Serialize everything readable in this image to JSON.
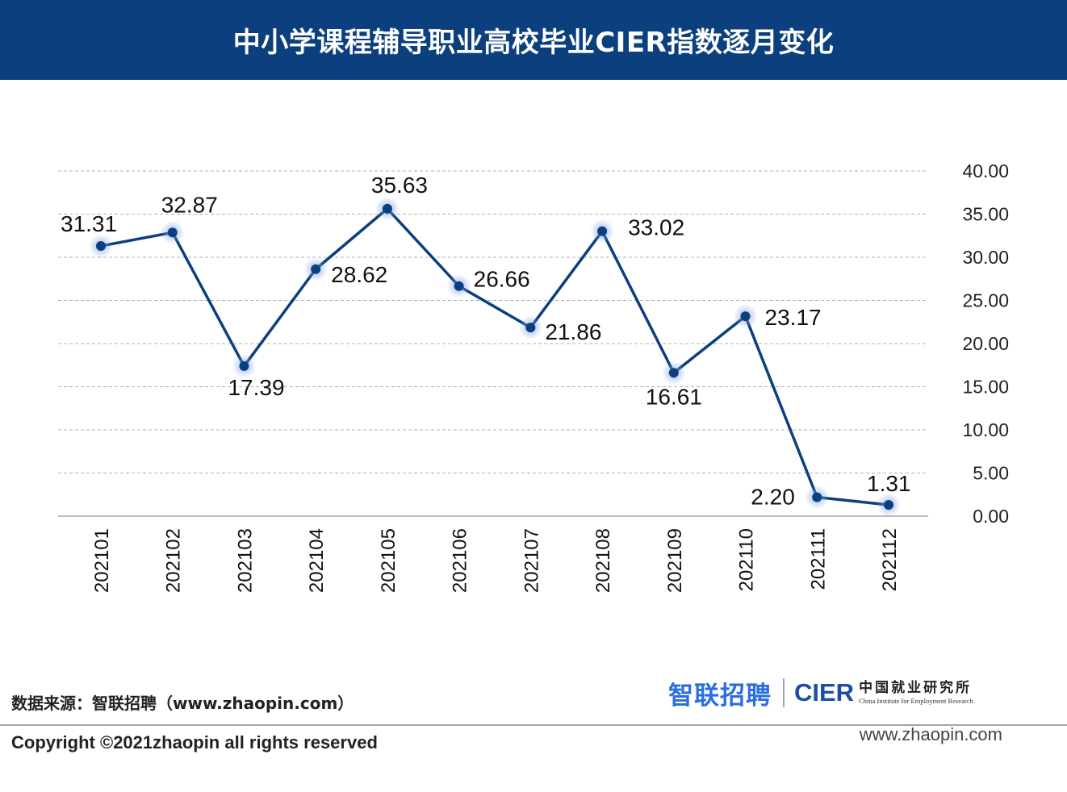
{
  "header": {
    "title": "中小学课程辅导职业高校毕业CIER指数逐月变化"
  },
  "chart_data": {
    "type": "line",
    "title": "中小学课程辅导职业高校毕业CIER指数逐月变化",
    "categories": [
      "202101",
      "202102",
      "202103",
      "202104",
      "202105",
      "202106",
      "202107",
      "202108",
      "202109",
      "202110",
      "202111",
      "202112"
    ],
    "values": [
      31.31,
      32.87,
      17.39,
      28.62,
      35.63,
      26.66,
      21.86,
      33.02,
      16.61,
      23.17,
      2.2,
      1.31
    ],
    "data_labels": [
      "31.31",
      "32.87",
      "17.39",
      "28.62",
      "35.63",
      "26.66",
      "21.86",
      "33.02",
      "16.61",
      "23.17",
      "2.20",
      "1.31"
    ],
    "y_ticks": [
      "0.00",
      "5.00",
      "10.00",
      "15.00",
      "20.00",
      "25.00",
      "30.00",
      "35.00",
      "40.00"
    ],
    "ylim": [
      0,
      40
    ],
    "y_axis_side": "right",
    "grid": true,
    "line_color": "#0b3f7e"
  },
  "footer": {
    "source": "数据来源：智联招聘（www.zhaopin.com）",
    "copyright": "Copyright ©2021zhaopin all rights reserved",
    "website": "www.zhaopin.com",
    "logo_zhilian": "智联招聘",
    "logo_cier": "CIER",
    "logo_cier_cn": "中国就业研究所",
    "logo_cier_en": "China Institute for Employment Research"
  }
}
